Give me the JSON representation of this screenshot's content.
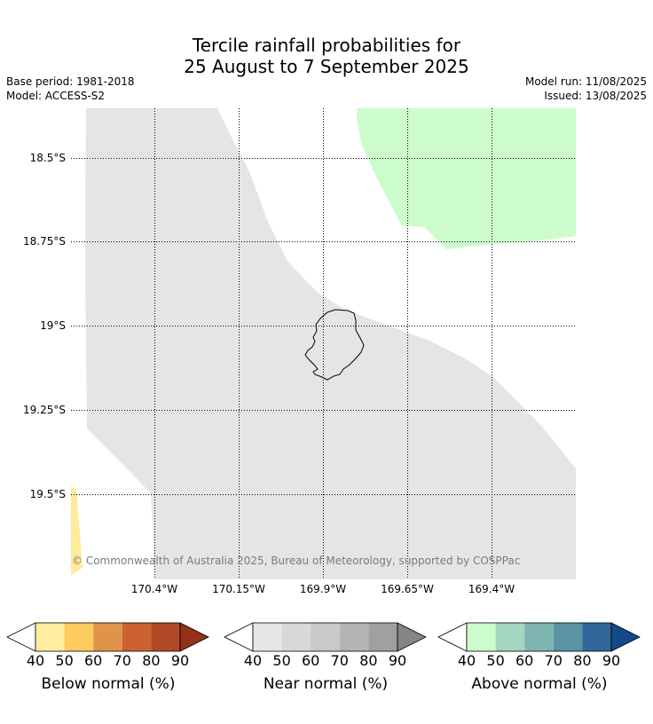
{
  "title": {
    "line1": "Tercile rainfall probabilities for",
    "line2": "25 August to 7 September 2025"
  },
  "meta": {
    "base_period": "Base period: 1981-2018",
    "model": "Model: ACCESS-S2",
    "model_run": "Model run: 11/08/2025",
    "issued": "Issued: 13/08/2025"
  },
  "map": {
    "lat_labels": [
      "18.5°S",
      "18.75°S",
      "19°S",
      "19.25°S",
      "19.5°S"
    ],
    "lon_labels": [
      "170.4°W",
      "170.15°W",
      "169.9°W",
      "169.65°W",
      "169.4°W"
    ],
    "credit": "© Commonwealth of Australia 2025, Bureau of Meteorology, supported by COSPPac",
    "region_colors": {
      "near_normal_40_50": "#e5e5e5",
      "above_normal_40_50": "#ccfccc",
      "below_normal_40_50": "#ffeb9b",
      "coastline": "#000000"
    }
  },
  "colorbars": [
    {
      "name": "below",
      "title": "Below normal (%)",
      "ticks": [
        "40",
        "50",
        "60",
        "70",
        "80",
        "90"
      ],
      "colors": [
        "#ffffff",
        "#ffeda0",
        "#fecc5c",
        "#e0944a",
        "#cc6232",
        "#b04a26",
        "#963119"
      ]
    },
    {
      "name": "near",
      "title": "Near normal (%)",
      "ticks": [
        "40",
        "50",
        "60",
        "70",
        "80",
        "90"
      ],
      "colors": [
        "#ffffff",
        "#e6e6e6",
        "#d8d8d8",
        "#c9c9c9",
        "#b4b4b4",
        "#a0a0a0",
        "#858585"
      ]
    },
    {
      "name": "above",
      "title": "Above normal (%)",
      "ticks": [
        "40",
        "50",
        "60",
        "70",
        "80",
        "90"
      ],
      "colors": [
        "#ffffff",
        "#ccfccc",
        "#a3d7bf",
        "#7fb5b0",
        "#5a93a3",
        "#31679a",
        "#124a8a"
      ]
    }
  ]
}
